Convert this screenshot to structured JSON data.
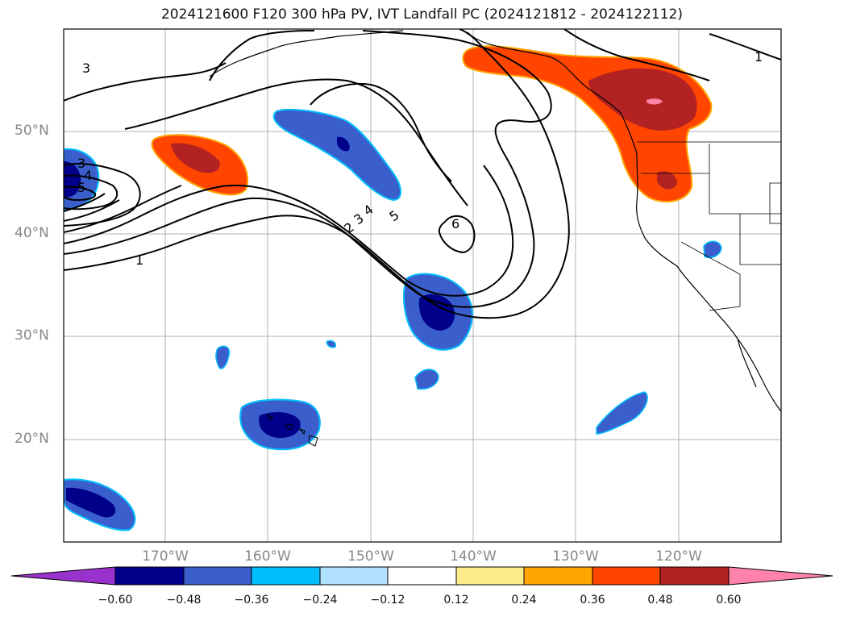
{
  "figure": {
    "title": "2024121600 F120 300 hPa PV, IVT Landfall PC (2024121812 - 2024122112)"
  },
  "axes": {
    "lat_labels": [
      "50°N",
      "40°N",
      "30°N",
      "20°N"
    ],
    "lon_labels": [
      "170°W",
      "160°W",
      "150°W",
      "140°W",
      "130°W",
      "120°W"
    ]
  },
  "contours": {
    "labels": [
      "3",
      "3",
      "4",
      "5",
      "1",
      "2",
      "3",
      "4",
      "5",
      "6",
      "1"
    ]
  },
  "colorbar": {
    "ticks": [
      "−0.60",
      "−0.48",
      "−0.36",
      "−0.24",
      "−0.12",
      "0.12",
      "0.24",
      "0.36",
      "0.48",
      "0.60"
    ],
    "colors": [
      "#9932cc",
      "#00008b",
      "#3a5fcd",
      "#00bfff",
      "#b0e2ff",
      "#ffffff",
      "#ffec8b",
      "#ffa500",
      "#ff4500",
      "#b22222",
      "#ff82ab"
    ]
  }
}
